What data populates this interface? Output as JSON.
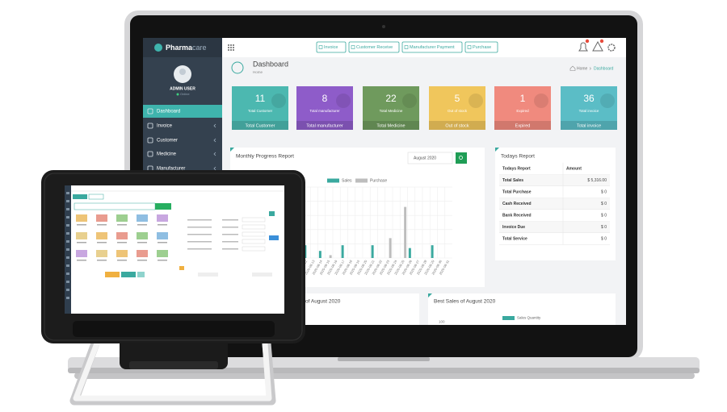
{
  "brand": {
    "name": "Pharma",
    "suffix": "care"
  },
  "user": {
    "name": "ADMIN USER",
    "status": "Online"
  },
  "sidebar": [
    "Dashboard",
    "Invoice",
    "Customer",
    "Medicine",
    "Manufacturer"
  ],
  "top_buttons": [
    "Invoice",
    "Customer Receive",
    "Manufacturer Payment",
    "Purchase"
  ],
  "page": {
    "title": "Dashboard",
    "subtitle": "Home",
    "breadcrumb": [
      "Home",
      "Dashboard"
    ]
  },
  "cards": [
    {
      "value": "11",
      "label": "Total Customer",
      "footer": "Total Customer"
    },
    {
      "value": "8",
      "label": "Total manufacturer",
      "footer": "Total manufacturer"
    },
    {
      "value": "22",
      "label": "Total Medicine",
      "footer": "Total Medicine"
    },
    {
      "value": "5",
      "label": "Out of stock",
      "footer": "Out of stock"
    },
    {
      "value": "1",
      "label": "Expired",
      "footer": "Expired"
    },
    {
      "value": "36",
      "label": "Total invoice",
      "footer": "Total invoice"
    }
  ],
  "monthly_report": {
    "title": "Monthly Progress Report",
    "month": "August 2020",
    "categories": [
      "2020-08-12",
      "2020-08-13",
      "2020-08-14",
      "2020-08-15",
      "2020-08-16",
      "2020-08-17",
      "2020-08-18",
      "2020-08-19",
      "2020-08-20",
      "2020-08-21",
      "2020-08-22",
      "2020-08-23",
      "2020-08-24",
      "2020-08-25",
      "2020-08-26",
      "2020-08-27",
      "2020-08-28",
      "2020-08-29",
      "2020-08-30",
      "2020-08-31"
    ],
    "series": [
      {
        "name": "Sales",
        "color": "#3aa99f",
        "values": [
          18,
          0,
          10,
          0,
          0,
          18,
          0,
          0,
          0,
          18,
          0,
          0,
          0,
          0,
          14,
          0,
          0,
          18,
          0,
          0
        ]
      },
      {
        "name": "Purchase",
        "color": "#bdbdbd",
        "values": [
          0,
          0,
          0,
          4,
          0,
          0,
          0,
          0,
          0,
          0,
          0,
          28,
          0,
          72,
          0,
          0,
          0,
          0,
          0,
          0
        ]
      }
    ],
    "ylim": [
      0,
      100
    ]
  },
  "todays_report": {
    "title": "Todays Report",
    "header": [
      "Todays Report",
      "Amount"
    ],
    "rows": [
      [
        "Total Sales",
        "$ 5,316.00"
      ],
      [
        "Total Purchase",
        "$ 0"
      ],
      [
        "Cash Received",
        "$ 0"
      ],
      [
        "Bank Received",
        "$ 0"
      ],
      [
        "Invoice Due",
        "$ 0"
      ],
      [
        "Total Service",
        "$ 0"
      ]
    ]
  },
  "sales_panel": {
    "title": "of August 2020"
  },
  "best_sales": {
    "title": "Best Sales of August 2020",
    "legend": "Sales Quantity",
    "axis_label": "100"
  }
}
